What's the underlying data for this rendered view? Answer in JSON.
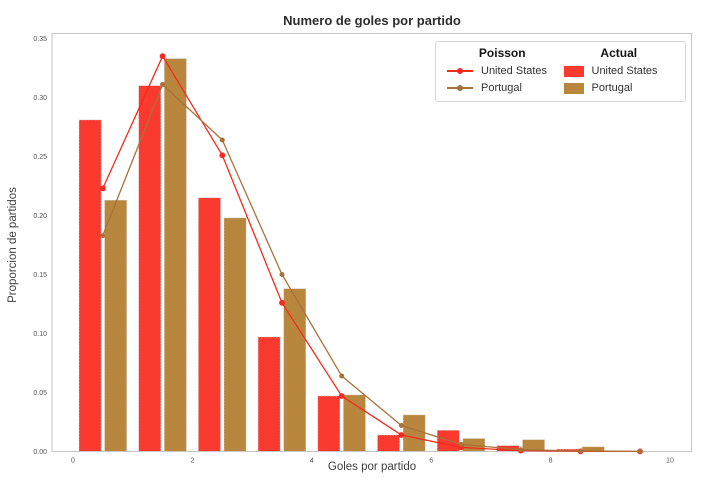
{
  "chart_data": {
    "type": "bar",
    "title": "Numero de goles por partido",
    "xlabel": "Goles por partido",
    "ylabel": "Proporcion de partidos",
    "xlim": [
      -0.35,
      10.37
    ],
    "ylim": [
      0,
      0.354
    ],
    "grid": false,
    "legend_position": "upper right",
    "x_ticks": [
      0,
      2,
      4,
      6,
      8,
      10
    ],
    "x_tick_labels": [
      "0",
      "2",
      "4",
      "6",
      "8",
      "10"
    ],
    "y_ticks": [
      0,
      0.05,
      0.1,
      0.15,
      0.2,
      0.25,
      0.3,
      0.35
    ],
    "y_tick_labels": [
      "0.00",
      "0.05",
      "0.10",
      "0.15",
      "0.20",
      "0.25",
      "0.30",
      "0.35"
    ],
    "categories": [
      0,
      1,
      2,
      3,
      4,
      5,
      6,
      7,
      8,
      9
    ],
    "bar_series": [
      {
        "name": "United States",
        "group": "Actual",
        "color": "#fa3a2e",
        "values": [
          0.281,
          0.31,
          0.215,
          0.097,
          0.047,
          0.014,
          0.018,
          0.005,
          0.002,
          0
        ]
      },
      {
        "name": "Portugal",
        "group": "Actual",
        "color": "#b9863e",
        "values": [
          0.213,
          0.333,
          0.198,
          0.138,
          0.048,
          0.031,
          0.011,
          0.01,
          0.004,
          0
        ]
      }
    ],
    "line_series": [
      {
        "name": "United States",
        "group": "Poisson",
        "color": "#f32b1e",
        "x": [
          0.5,
          1.5,
          2.5,
          3.5,
          4.5,
          5.5,
          6.5,
          7.5,
          8.5,
          9.5
        ],
        "values": [
          0.223,
          0.335,
          0.251,
          0.126,
          0.047,
          0.014,
          0.0035,
          0.0008,
          0.0002,
          0.0001
        ]
      },
      {
        "name": "Portugal",
        "group": "Poisson",
        "color": "#a9713a",
        "x": [
          0.5,
          1.5,
          2.5,
          3.5,
          4.5,
          5.5,
          6.5,
          7.5,
          8.5,
          9.5
        ],
        "values": [
          0.183,
          0.311,
          0.264,
          0.15,
          0.064,
          0.022,
          0.006,
          0.0015,
          0.0004,
          0.0001
        ]
      }
    ],
    "legend": {
      "columns": [
        {
          "title": "Poisson",
          "style": "line",
          "items": [
            {
              "label": "United States",
              "color": "#f32b1e"
            },
            {
              "label": "Portugal",
              "color": "#a9713a"
            }
          ]
        },
        {
          "title": "Actual",
          "style": "patch",
          "items": [
            {
              "label": "United States",
              "color": "#fa3a2e"
            },
            {
              "label": "Portugal",
              "color": "#b9863e"
            }
          ]
        }
      ]
    }
  }
}
